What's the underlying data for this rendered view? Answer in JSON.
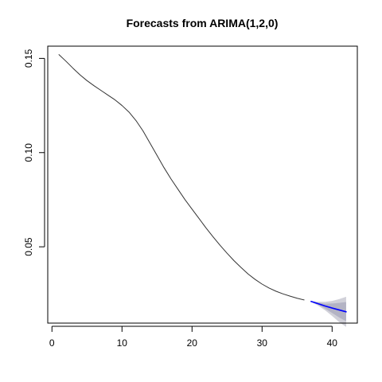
{
  "chart_data": {
    "type": "line",
    "title": "Forecasts from ARIMA(1,2,0)",
    "xlabel": "",
    "ylabel": "",
    "xlim": [
      -0.6,
      43.6
    ],
    "ylim": [
      0.0095,
      0.1565
    ],
    "x_ticks": [
      0,
      10,
      20,
      30,
      40
    ],
    "x_tick_labels": [
      "0",
      "10",
      "20",
      "30",
      "40"
    ],
    "y_ticks": [
      0.05,
      0.1,
      0.15
    ],
    "y_tick_labels": [
      "0.05",
      "0.10",
      "0.15"
    ],
    "series": [
      {
        "name": "observed",
        "color": "#333333",
        "x": [
          1,
          2,
          3,
          4,
          5,
          6,
          7,
          8,
          9,
          10,
          11,
          12,
          13,
          14,
          15,
          16,
          17,
          18,
          19,
          20,
          21,
          22,
          23,
          24,
          25,
          26,
          27,
          28,
          29,
          30,
          31,
          32,
          33,
          34,
          35,
          36
        ],
        "values": [
          0.152,
          0.1485,
          0.1448,
          0.1413,
          0.1382,
          0.1355,
          0.133,
          0.1305,
          0.128,
          0.125,
          0.1215,
          0.117,
          0.1115,
          0.105,
          0.0985,
          0.092,
          0.086,
          0.0805,
          0.075,
          0.07,
          0.065,
          0.06,
          0.0553,
          0.0508,
          0.0466,
          0.0426,
          0.039,
          0.0356,
          0.0327,
          0.0302,
          0.0281,
          0.0264,
          0.025,
          0.0238,
          0.0227,
          0.0218
        ]
      },
      {
        "name": "forecast",
        "color": "#0000ff",
        "x": [
          37,
          38,
          39,
          40,
          41,
          42
        ],
        "values": [
          0.021,
          0.0198,
          0.0186,
          0.0175,
          0.0165,
          0.0155
        ]
      }
    ],
    "intervals": [
      {
        "level": "95%",
        "color": "#d1d1d9",
        "x": [
          37,
          38,
          39,
          40,
          41,
          42
        ],
        "lower": [
          0.0208,
          0.0188,
          0.0163,
          0.0133,
          0.0101,
          0.0075
        ],
        "upper": [
          0.0212,
          0.0208,
          0.0208,
          0.0213,
          0.0222,
          0.0235
        ]
      },
      {
        "level": "80%",
        "color": "#b3b3c4",
        "x": [
          37,
          38,
          39,
          40,
          41,
          42
        ],
        "lower": [
          0.0209,
          0.0193,
          0.0172,
          0.0149,
          0.0125,
          0.0105
        ],
        "upper": [
          0.0211,
          0.0203,
          0.0198,
          0.0199,
          0.0202,
          0.0207
        ]
      }
    ],
    "grid": false,
    "legend": "none"
  }
}
